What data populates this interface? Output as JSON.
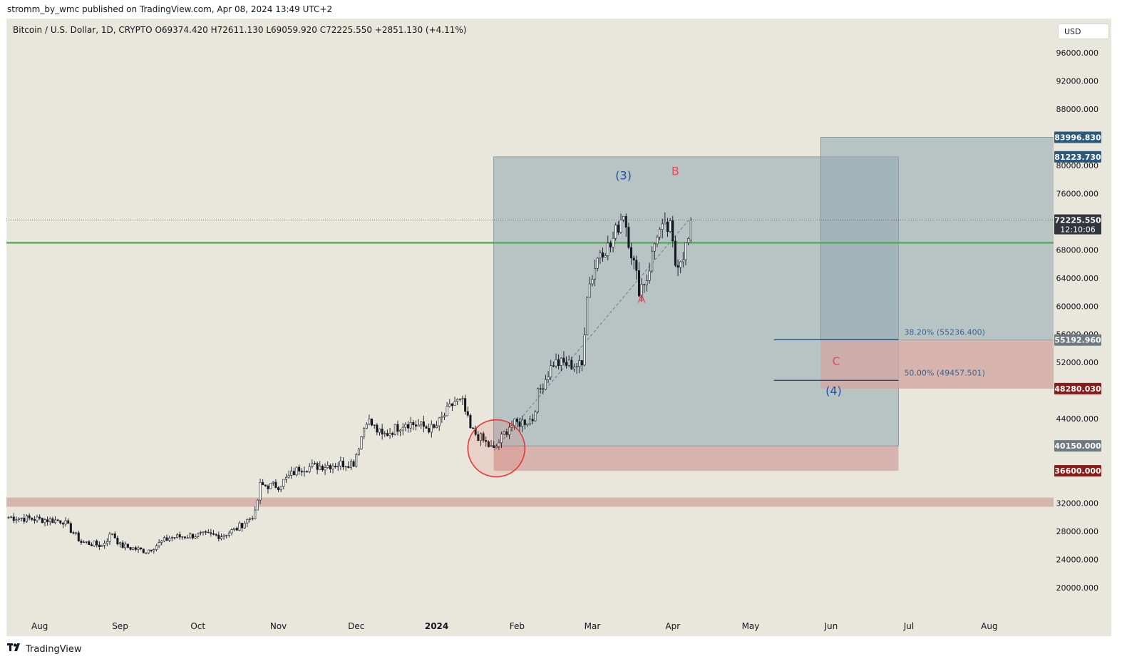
{
  "header": {
    "published_by": "stromm_by_wmc published on TradingView.com, Apr 08, 2024 13:49 UTC+2"
  },
  "symbol_line": "Bitcoin / U.S. Dollar, 1D, CRYPTO  O69374.420  H72611.130  L69059.920  C72225.550  +2851.130 (+4.11%)",
  "currency_button": "USD",
  "footer": {
    "brand": "TradingView"
  },
  "colors": {
    "background": "#e9e6dc",
    "candle": "#131722",
    "support_line": "#4caf50",
    "teal_box": "#8fa8b0",
    "red_zone": "#d2a6a2",
    "fib_line": "#1e4c80",
    "wave_blue": "#1f4ea8",
    "wave_red": "#e84a5f",
    "circle": "#e53935"
  },
  "chart_data": {
    "type": "candlestick",
    "title": "Bitcoin / U.S. Dollar, 1D, CRYPTO",
    "y_axis_ticks": [
      96000,
      92000,
      88000,
      84000,
      80000,
      76000,
      72000,
      68000,
      64000,
      60000,
      56000,
      52000,
      48000,
      44000,
      40000,
      36000,
      32000,
      28000,
      24000,
      20000
    ],
    "y_tick_labels": [
      "96000.000",
      "92000.000",
      "88000.000",
      "",
      "80000.000",
      "76000.000",
      "",
      "68000.000",
      "64000.000",
      "60000.000",
      "56000.000",
      "52000.000",
      "",
      "44000.000",
      "",
      "",
      "32000.000",
      "28000.000",
      "24000.000",
      "20000.000"
    ],
    "ylim": [
      16000,
      102500
    ],
    "x_tick_labels": [
      "Aug",
      "Sep",
      "Oct",
      "Nov",
      "Dec",
      "2024",
      "Feb",
      "Mar",
      "Apr",
      "May",
      "Jun",
      "Jul",
      "Aug"
    ],
    "x_tick_dates": [
      "2023-08-01",
      "2023-09-01",
      "2023-10-01",
      "2023-11-01",
      "2023-12-01",
      "2024-01-01",
      "2024-02-01",
      "2024-03-01",
      "2024-04-01",
      "2024-05-01",
      "2024-06-01",
      "2024-07-01",
      "2024-08-01"
    ],
    "last_ohlc": {
      "open": 69374.42,
      "high": 72611.13,
      "low": 69059.92,
      "close": 72225.55,
      "change": 2851.13,
      "change_pct": "+4.11%",
      "countdown": "12:10:06"
    },
    "price_path": [
      [
        "2023-07-20",
        30000
      ],
      [
        "2023-08-10",
        29500
      ],
      [
        "2023-08-17",
        26500
      ],
      [
        "2023-08-25",
        26000
      ],
      [
        "2023-08-29",
        27800
      ],
      [
        "2023-09-01",
        26000
      ],
      [
        "2023-09-11",
        25200
      ],
      [
        "2023-09-20",
        27100
      ],
      [
        "2023-10-01",
        27500
      ],
      [
        "2023-10-10",
        27400
      ],
      [
        "2023-10-16",
        28400
      ],
      [
        "2023-10-23",
        30500
      ],
      [
        "2023-10-25",
        34500
      ],
      [
        "2023-11-01",
        34500
      ],
      [
        "2023-11-09",
        37000
      ],
      [
        "2023-11-20",
        37400
      ],
      [
        "2023-11-30",
        37800
      ],
      [
        "2023-12-03",
        41500
      ],
      [
        "2023-12-05",
        44000
      ],
      [
        "2023-12-11",
        41500
      ],
      [
        "2023-12-20",
        43500
      ],
      [
        "2023-12-31",
        42500
      ],
      [
        "2024-01-08",
        46500
      ],
      [
        "2024-01-11",
        46200
      ],
      [
        "2024-01-14",
        42500
      ],
      [
        "2024-01-18",
        41200
      ],
      [
        "2024-01-23",
        39500
      ],
      [
        "2024-01-29",
        43000
      ],
      [
        "2024-02-07",
        44000
      ],
      [
        "2024-02-09",
        47500
      ],
      [
        "2024-02-15",
        52000
      ],
      [
        "2024-02-26",
        51500
      ],
      [
        "2024-02-28",
        62000
      ],
      [
        "2024-03-04",
        68000
      ],
      [
        "2024-03-08",
        68500
      ],
      [
        "2024-03-13",
        73500
      ],
      [
        "2024-03-15",
        69500
      ],
      [
        "2024-03-19",
        62500
      ],
      [
        "2024-03-22",
        64000
      ],
      [
        "2024-03-26",
        70500
      ],
      [
        "2024-03-31",
        71000
      ],
      [
        "2024-04-02",
        66000
      ],
      [
        "2024-04-05",
        67500
      ],
      [
        "2024-04-07",
        69400
      ],
      [
        "2024-04-08",
        72225.55
      ]
    ],
    "horizontal_lines": [
      {
        "price": 69000,
        "color": "#4caf50"
      }
    ],
    "zones": [
      {
        "from": 31500,
        "to": 32800,
        "color": "red"
      },
      {
        "from": 36600,
        "to": 40150,
        "date_from": "2024-01-23",
        "date_to": "2024-06-27",
        "color": "red"
      },
      {
        "from": 40150,
        "to": 81223.73,
        "date_from": "2024-01-23",
        "date_to": "2024-06-27",
        "color": "teal"
      },
      {
        "from": 55192.96,
        "to": 83996.83,
        "date_from": "2024-05-28",
        "date_to": "2024-08-31",
        "color": "teal"
      },
      {
        "from": 48280.03,
        "to": 55192.96,
        "date_from": "2024-05-28",
        "date_to": "2024-08-31",
        "color": "red"
      }
    ],
    "fib_levels": [
      {
        "label": "38.20% (55236.400)",
        "price": 55236.4
      },
      {
        "label": "50.00% (49457.501)",
        "price": 49457.501
      }
    ],
    "price_labels": [
      {
        "text": "83996.830",
        "price": 83996.83,
        "style": "dark"
      },
      {
        "text": "81223.730",
        "price": 81223.73,
        "style": "dark"
      },
      {
        "text": "72225.550",
        "price": 72225.55,
        "style": "black"
      },
      {
        "text": "55192.960",
        "price": 55192.96,
        "style": "grey"
      },
      {
        "text": "48280.030",
        "price": 48280.03,
        "style": "red"
      },
      {
        "text": "40150.000",
        "price": 40150,
        "style": "grey"
      },
      {
        "text": "36600.000",
        "price": 36600,
        "style": "red"
      }
    ],
    "annotations": [
      {
        "text": "(3)",
        "date": "2024-03-13",
        "price": 78000,
        "color": "blue"
      },
      {
        "text": "B",
        "date": "2024-04-02",
        "price": 78600,
        "color": "red"
      },
      {
        "text": "A",
        "date": "2024-03-20",
        "price": 60500,
        "color": "red"
      },
      {
        "text": "C",
        "date": "2024-06-03",
        "price": 51600,
        "color": "red"
      },
      {
        "text": "(4)",
        "date": "2024-06-02",
        "price": 47400,
        "color": "blue"
      }
    ],
    "circle": {
      "date": "2024-01-24",
      "price": 39800
    },
    "trend_line": [
      [
        "2024-01-23",
        39500
      ],
      [
        "2024-04-08",
        72600
      ]
    ]
  }
}
